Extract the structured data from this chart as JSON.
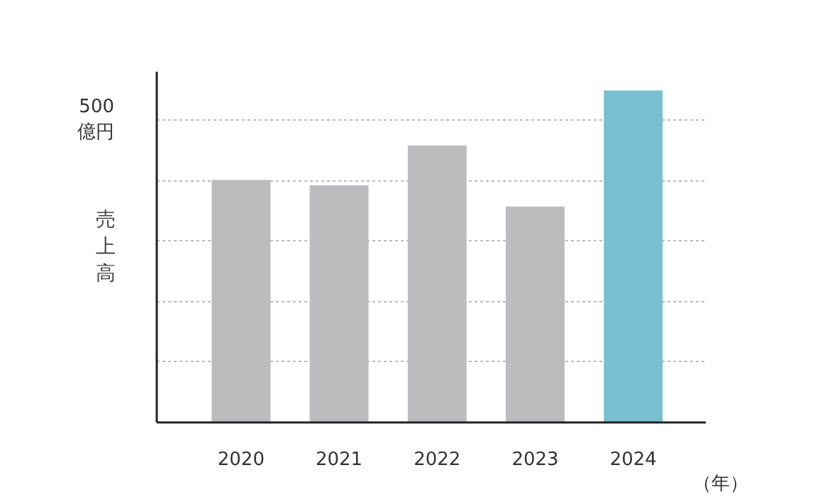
{
  "chart_data": {
    "type": "bar",
    "categories": [
      "2020",
      "2021",
      "2022",
      "2023",
      "2024"
    ],
    "values": [
      401,
      392,
      458,
      357,
      549
    ],
    "colors": [
      "#bcbcbe",
      "#bcbcbe",
      "#bcbcbe",
      "#bcbcbe",
      "#79bfcf"
    ],
    "ylabel": "売上高",
    "ylim": [
      0,
      580
    ],
    "yticks": [
      {
        "value": 100,
        "label": null
      },
      {
        "value": 200,
        "label": null
      },
      {
        "value": 300,
        "label": null
      },
      {
        "value": 400,
        "label": null
      },
      {
        "value": 500,
        "label": "500\n億円"
      }
    ],
    "grid": "y",
    "annotations": [
      "（年）"
    ]
  }
}
